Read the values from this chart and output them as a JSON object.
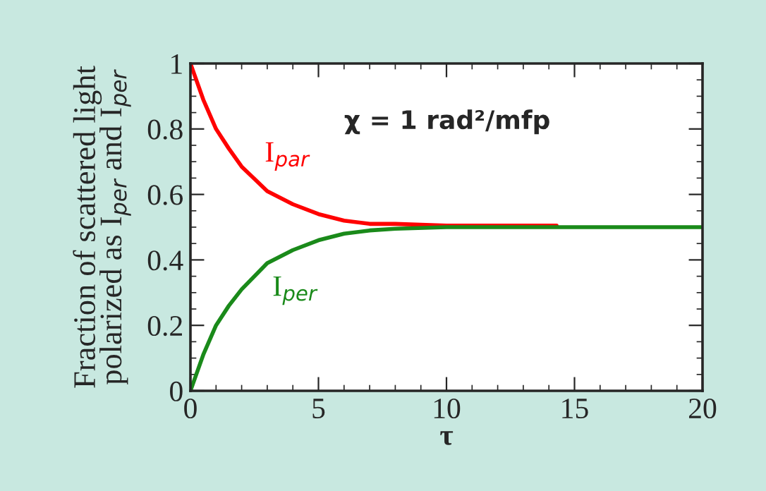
{
  "chart_data": {
    "type": "line",
    "xlabel": "τ",
    "ylabel": "Fraction of scattered light\npolarized as I$_{per}$ and I$_{per}$",
    "series": [
      {
        "color": "#ff0000",
        "x": [
          0,
          0.5,
          1,
          1.5,
          2,
          3,
          4,
          5,
          6,
          7,
          8,
          10,
          14.3
        ],
        "values": [
          1,
          0.89,
          0.8,
          0.74,
          0.685,
          0.61,
          0.57,
          0.54,
          0.52,
          0.51,
          0.51,
          0.505,
          0.505
        ]
      },
      {
        "color": "#1a8a1a",
        "x": [
          0,
          0.5,
          1,
          1.5,
          2,
          3,
          4,
          5,
          6,
          7,
          8,
          10,
          20
        ],
        "values": [
          0,
          0.11,
          0.2,
          0.26,
          0.31,
          0.39,
          0.43,
          0.46,
          0.48,
          0.49,
          0.495,
          0.5,
          0.5
        ]
      }
    ],
    "annotations": [
      "I$_{par}$",
      "I$_{per}$",
      "χ = 1 rad²/mfp"
    ],
    "xlim": [
      0,
      20
    ],
    "xticks": [
      0,
      5,
      10,
      15,
      20
    ],
    "ylim": [
      0,
      1
    ],
    "yticks": [
      {
        "value": 0,
        "label": "0"
      },
      0.2,
      0.4,
      0.6,
      0.8,
      {
        "value": 1,
        "label": "1"
      }
    ],
    "grid": false,
    "legend": false,
    "marker": "none",
    "line_style": "solid"
  }
}
